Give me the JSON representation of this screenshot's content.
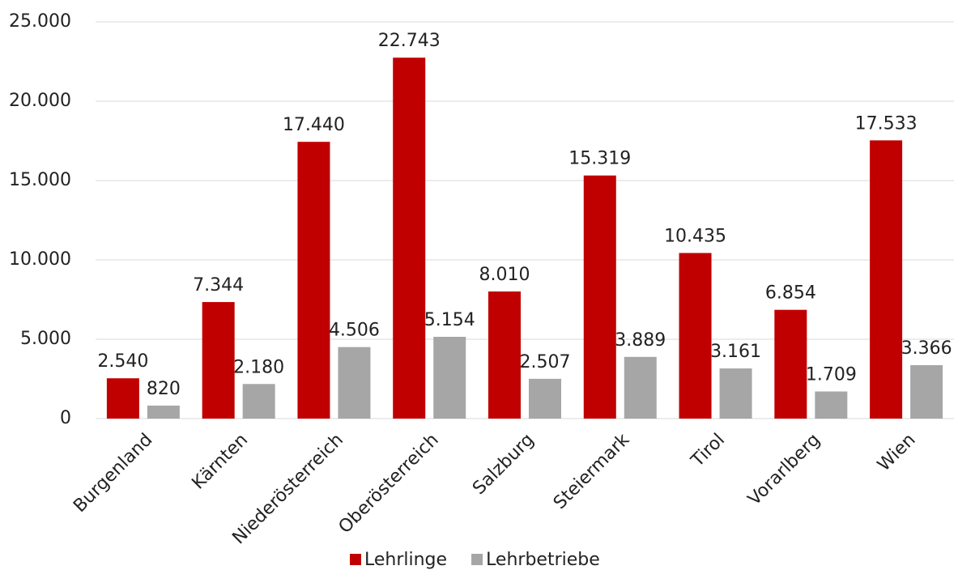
{
  "chart_data": {
    "type": "bar",
    "categories": [
      "Burgenland",
      "Kärnten",
      "Niederösterreich",
      "Oberösterreich",
      "Salzburg",
      "Steiermark",
      "Tirol",
      "Vorarlberg",
      "Wien"
    ],
    "series": [
      {
        "name": "Lehrlinge",
        "color": "#c00000",
        "values": [
          2540,
          7344,
          17440,
          22743,
          8010,
          15319,
          10435,
          6854,
          17533
        ],
        "value_labels": [
          "2.540",
          "7.344",
          "17.440",
          "22.743",
          "8.010",
          "15.319",
          "10.435",
          "6.854",
          "17.533"
        ]
      },
      {
        "name": "Lehrbetriebe",
        "color": "#a6a6a6",
        "values": [
          820,
          2180,
          4506,
          5154,
          2507,
          3889,
          3161,
          1709,
          3366
        ],
        "value_labels": [
          "820",
          "2.180",
          "4.506",
          "5.154",
          "2.507",
          "3.889",
          "3.161",
          "1.709",
          "3.366"
        ]
      }
    ],
    "ylim": [
      0,
      25000
    ],
    "yticks": [
      0,
      {
        "value": 5000,
        "label": "5.000"
      },
      {
        "value": 10000,
        "label": "10.000"
      },
      {
        "value": 15000,
        "label": "15.000"
      },
      {
        "value": 20000,
        "label": "20.000"
      },
      {
        "value": 25000,
        "label": "25.000"
      }
    ],
    "grid": true,
    "legend": "bottom"
  }
}
